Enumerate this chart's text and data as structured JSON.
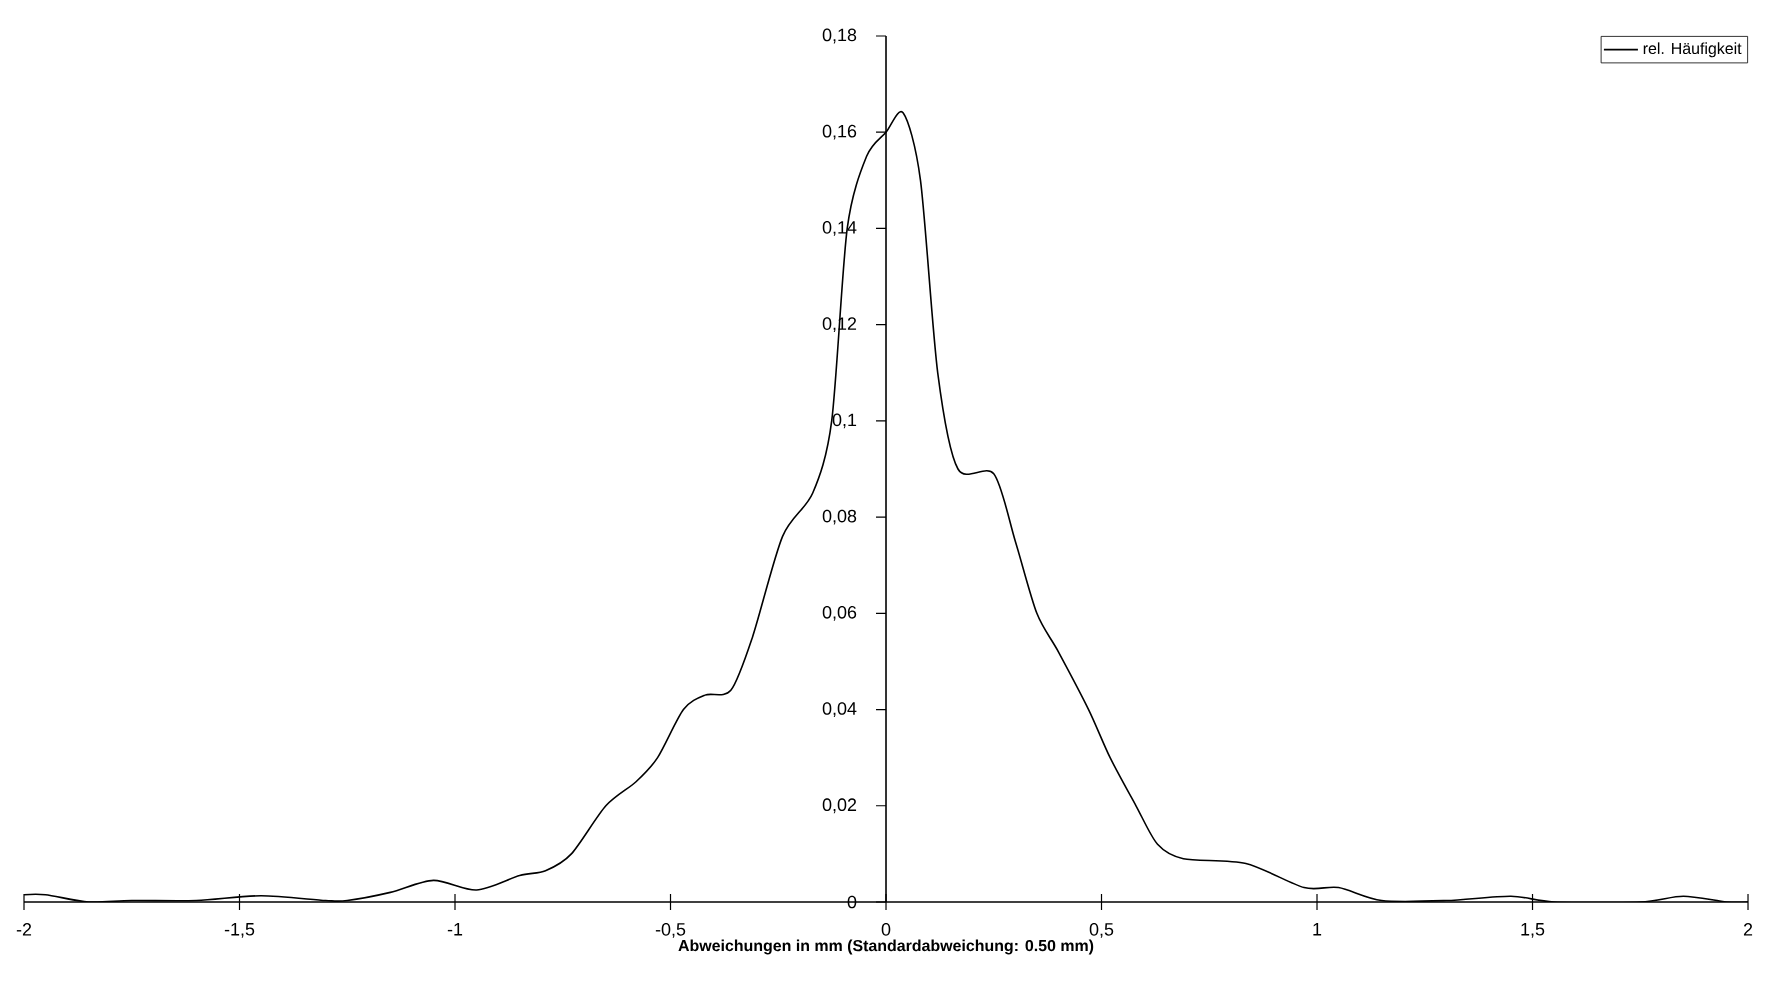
{
  "chart_data": {
    "type": "line",
    "xlabel": "Abweichungen in mm (Standardabweichung: 0.50 mm)",
    "xlim": [
      -2,
      2
    ],
    "ylim": [
      0,
      0.18
    ],
    "xticks": [
      -2,
      {
        "value": -1.5,
        "label": "-1,5"
      },
      -1,
      {
        "value": -0.5,
        "label": "-0,5"
      },
      0,
      {
        "value": 0.5,
        "label": "0,5"
      },
      1,
      {
        "value": 1.5,
        "label": "1,5"
      },
      2
    ],
    "yticks": [
      0,
      {
        "value": 0.02,
        "label": "0,02"
      },
      {
        "value": 0.04,
        "label": "0,04"
      },
      {
        "value": 0.06,
        "label": "0,06"
      },
      {
        "value": 0.08,
        "label": "0,08"
      },
      {
        "value": 0.1,
        "label": "0,1"
      },
      {
        "value": 0.12,
        "label": "0,12"
      },
      {
        "value": 0.14,
        "label": "0,14"
      },
      {
        "value": 0.16,
        "label": "0,16"
      },
      {
        "value": 0.18,
        "label": "0,18"
      }
    ],
    "grid": false,
    "legend": "top right",
    "marker": "none",
    "line_style": "solid",
    "series": [
      {
        "name": "rel. Häufigkeit",
        "color": "#000000",
        "x": [
          -2,
          -1.95,
          -1.85,
          -1.75,
          -1.6,
          -1.45,
          -1.3,
          -1.25,
          -1.15,
          -1.05,
          -0.95,
          -0.85,
          -0.79,
          -0.73,
          -0.65,
          -0.58,
          -0.53,
          -0.47,
          -0.42,
          -0.36,
          -0.31,
          -0.24,
          -0.17,
          -0.126,
          -0.09,
          -0.045,
          0,
          0.04,
          0.08,
          0.12,
          0.167,
          0.25,
          0.3,
          0.35,
          0.4,
          0.47,
          0.52,
          0.58,
          0.63,
          0.69,
          0.835,
          0.97,
          1.05,
          1.15,
          1.3,
          1.45,
          1.55,
          1.75,
          1.85,
          1.95,
          2
        ],
        "values": [
          0.0015,
          0.0015,
          0,
          0.0003,
          0.0003,
          0.0013,
          0.0003,
          0.0003,
          0.002,
          0.0045,
          0.0025,
          0.0055,
          0.0065,
          0.01,
          0.02,
          0.025,
          0.03,
          0.04,
          0.043,
          0.044,
          0.055,
          0.076,
          0.085,
          0.1,
          0.14,
          0.155,
          0.16,
          0.164,
          0.15,
          0.11,
          0.09,
          0.089,
          0.075,
          0.06,
          0.052,
          0.04,
          0.03,
          0.02,
          0.012,
          0.009,
          0.008,
          0.003,
          0.003,
          0.0003,
          0.0003,
          0.0012,
          0,
          0,
          0.0012,
          0,
          0
        ]
      }
    ]
  }
}
